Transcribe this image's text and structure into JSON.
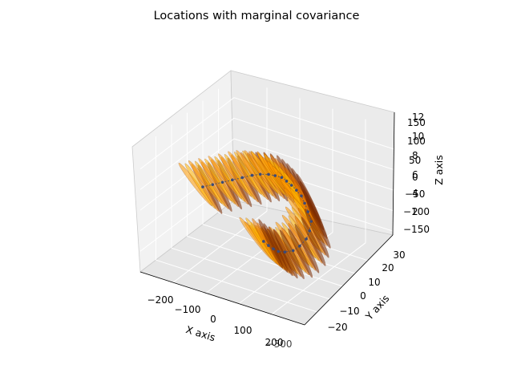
{
  "chart_data": {
    "type": "scatter",
    "title": "Locations with marginal covariance",
    "xlabel": "X axis",
    "ylabel": "Y axis",
    "zlabel": "Z axis",
    "x_ticks": [
      "−200",
      "−100",
      "0",
      "100",
      "200"
    ],
    "x_ticks_overlap": "−300",
    "y_ticks": [
      "−20",
      "−10",
      "0",
      "10",
      "20",
      "30"
    ],
    "z_ticks_left": [
      "150",
      "100",
      "50",
      "0",
      "−50",
      "−100",
      "−150"
    ],
    "z_ticks_right": [
      "12",
      "10",
      "8",
      "6",
      "4",
      "2"
    ],
    "xlim": [
      -250,
      250
    ],
    "ylim": [
      -25,
      32
    ],
    "zlim": [
      -160,
      160
    ],
    "grid": true,
    "point_color": "#3b4a78",
    "ellipse_colors": [
      "#ff9a00",
      "#ffb300",
      "#e87800",
      "#7a2a00"
    ],
    "series": [
      {
        "x": [
          -160,
          -140,
          -120,
          -100,
          -80,
          -60,
          -40,
          -20,
          0,
          20,
          40,
          60,
          80,
          100,
          120,
          140,
          160,
          170,
          175,
          170,
          160,
          140,
          120,
          100,
          80,
          60
        ],
        "y": [
          -5,
          -3,
          -1,
          1,
          3,
          5,
          6,
          7,
          7,
          7,
          6,
          5,
          4,
          3,
          1,
          -1,
          -3,
          -6,
          -9,
          -12,
          -14,
          -15,
          -15,
          -14,
          -13,
          -12
        ],
        "z": [
          20,
          25,
          30,
          35,
          40,
          45,
          50,
          52,
          54,
          55,
          54,
          52,
          48,
          42,
          35,
          25,
          12,
          0,
          -10,
          -20,
          -28,
          -34,
          -38,
          -40,
          -40,
          -38
        ]
      }
    ]
  }
}
